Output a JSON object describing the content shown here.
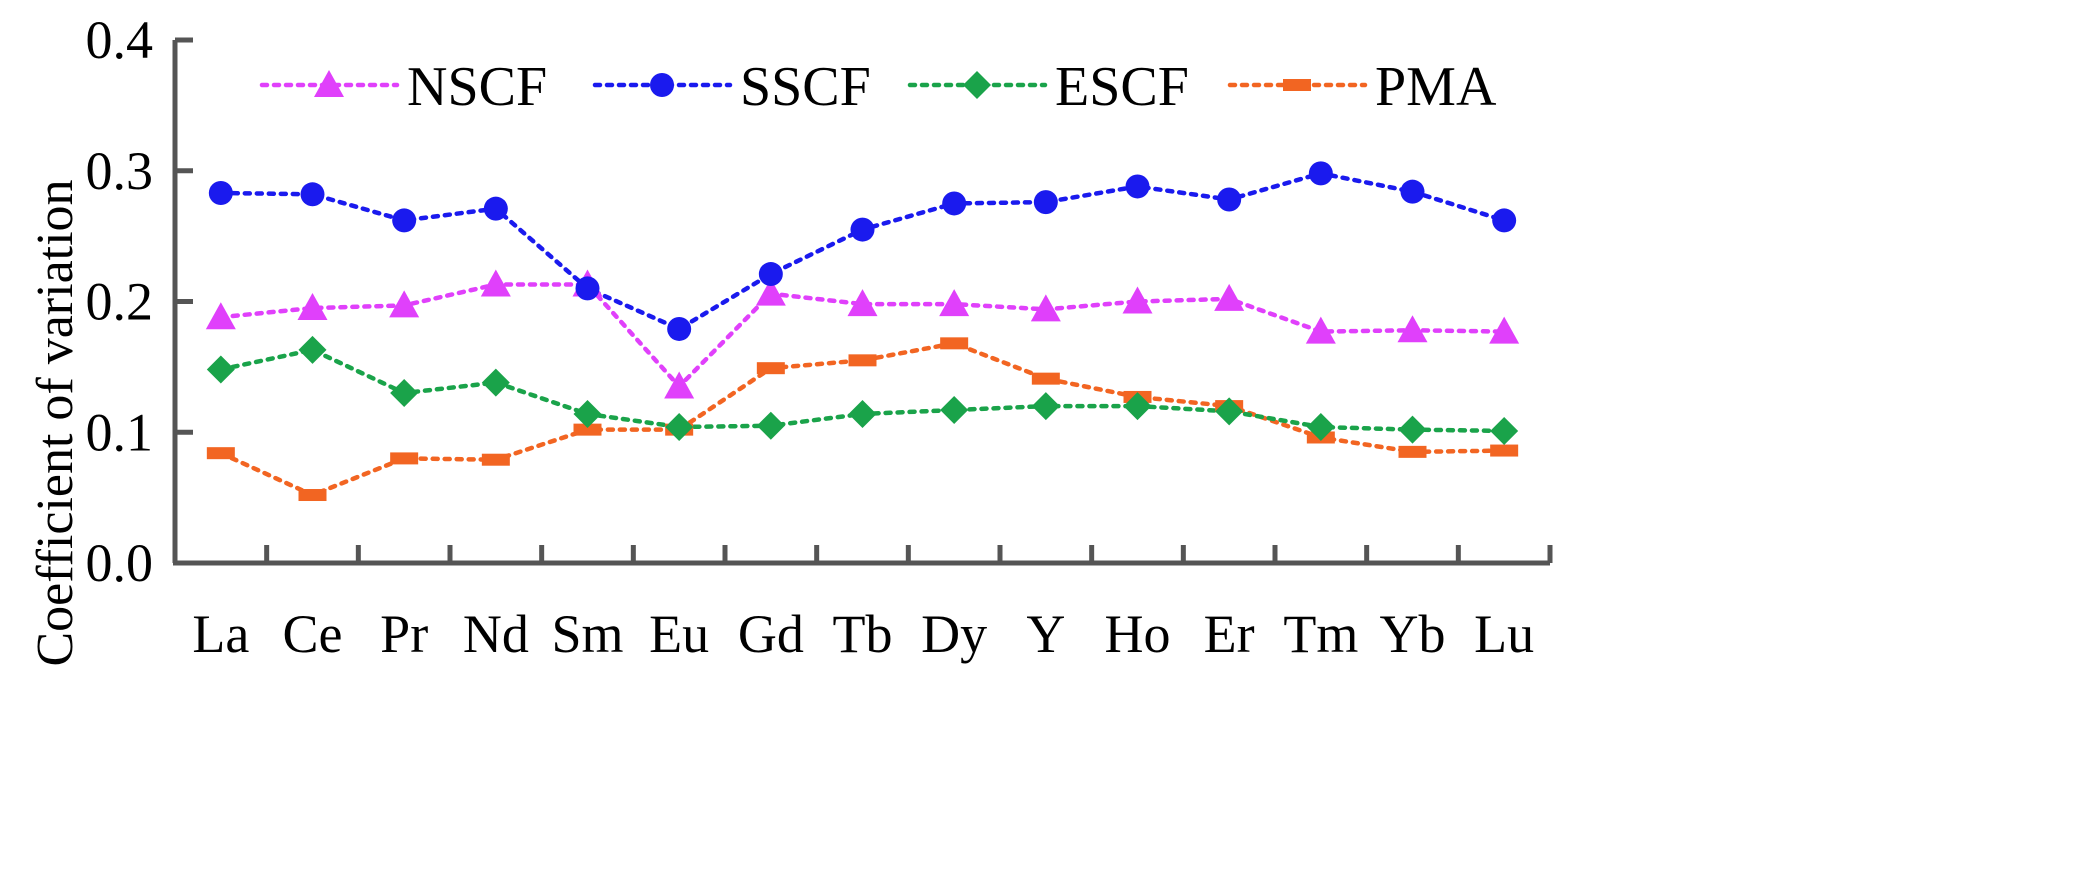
{
  "chart_data": {
    "type": "line",
    "title": "",
    "xlabel": "",
    "ylabel": "Coefficient of  variation",
    "ylim": [
      0,
      0.4
    ],
    "yticks": [
      "0.0",
      "0.1",
      "0.2",
      "0.3",
      "0.4"
    ],
    "grid": false,
    "legend_position": "top",
    "categories": [
      "La",
      "Ce",
      "Pr",
      "Nd",
      "Sm",
      "Eu",
      "Gd",
      "Tb",
      "Dy",
      "Y",
      "Ho",
      "Er",
      "Tm",
      "Yb",
      "Lu"
    ],
    "series": [
      {
        "name": "NSCF",
        "color": "#e040fb",
        "marker": "triangle",
        "values": [
          0.188,
          0.195,
          0.197,
          0.213,
          0.213,
          0.135,
          0.206,
          0.198,
          0.198,
          0.194,
          0.2,
          0.202,
          0.177,
          0.178,
          0.177
        ]
      },
      {
        "name": "SSCF",
        "color": "#1a1aee",
        "marker": "circle",
        "values": [
          0.283,
          0.282,
          0.262,
          0.271,
          0.21,
          0.179,
          0.221,
          0.255,
          0.275,
          0.276,
          0.288,
          0.278,
          0.298,
          0.284,
          0.262
        ]
      },
      {
        "name": "ESCF",
        "color": "#1aa34a",
        "marker": "diamond",
        "values": [
          0.148,
          0.163,
          0.13,
          0.138,
          0.114,
          0.104,
          0.105,
          0.114,
          0.117,
          0.12,
          0.12,
          0.116,
          0.104,
          0.102,
          0.101
        ]
      },
      {
        "name": "PMA",
        "color": "#f26522",
        "marker": "dash",
        "values": [
          0.084,
          0.052,
          0.08,
          0.079,
          0.102,
          0.102,
          0.149,
          0.155,
          0.168,
          0.141,
          0.127,
          0.12,
          0.096,
          0.085,
          0.086
        ]
      }
    ]
  }
}
